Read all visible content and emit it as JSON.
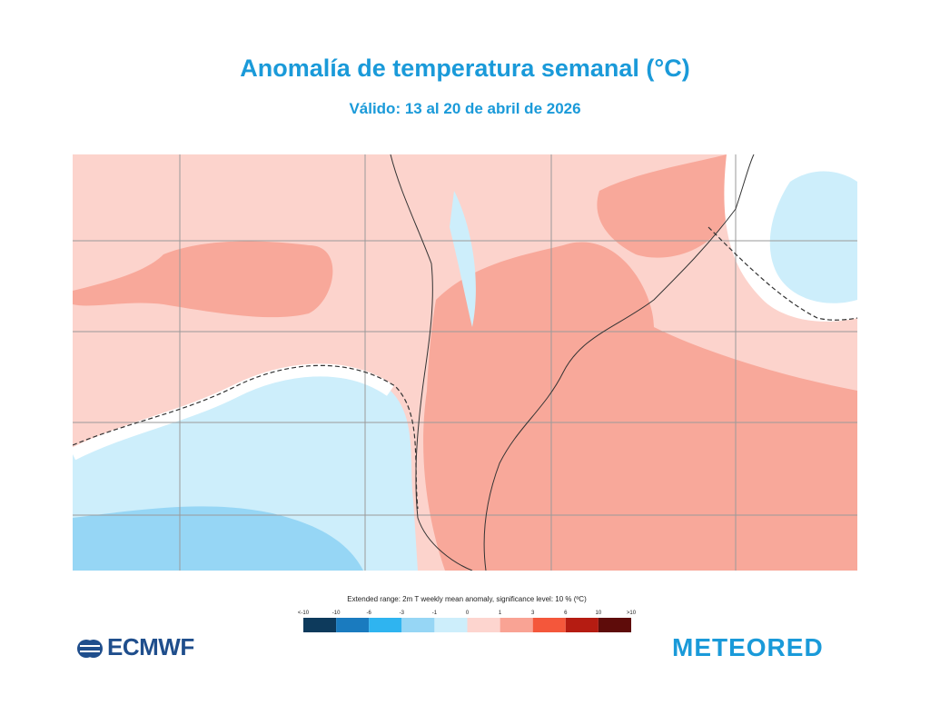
{
  "header": {
    "title": "Anomalía de temperatura semanal  (°C)",
    "subtitle": "Válido: 13 al 20 de abril de 2026"
  },
  "legend": {
    "caption": "Extended range: 2m T weekly mean anomaly, significance level: 10 % (ºC)",
    "labels": [
      "<-10",
      "-10",
      "-6",
      "-3",
      "-1",
      "0",
      "1",
      "3",
      "6",
      "10",
      ">10"
    ],
    "colors": [
      "#0d3a5c",
      "#1a7bbf",
      "#2fb4f0",
      "#96d6f5",
      "#cdeefb",
      "#fdd5cf",
      "#f9a394",
      "#f4573b",
      "#b51c12",
      "#5e0c0a"
    ]
  },
  "logos": {
    "left": "ECMWF",
    "right": "METEORED"
  }
}
